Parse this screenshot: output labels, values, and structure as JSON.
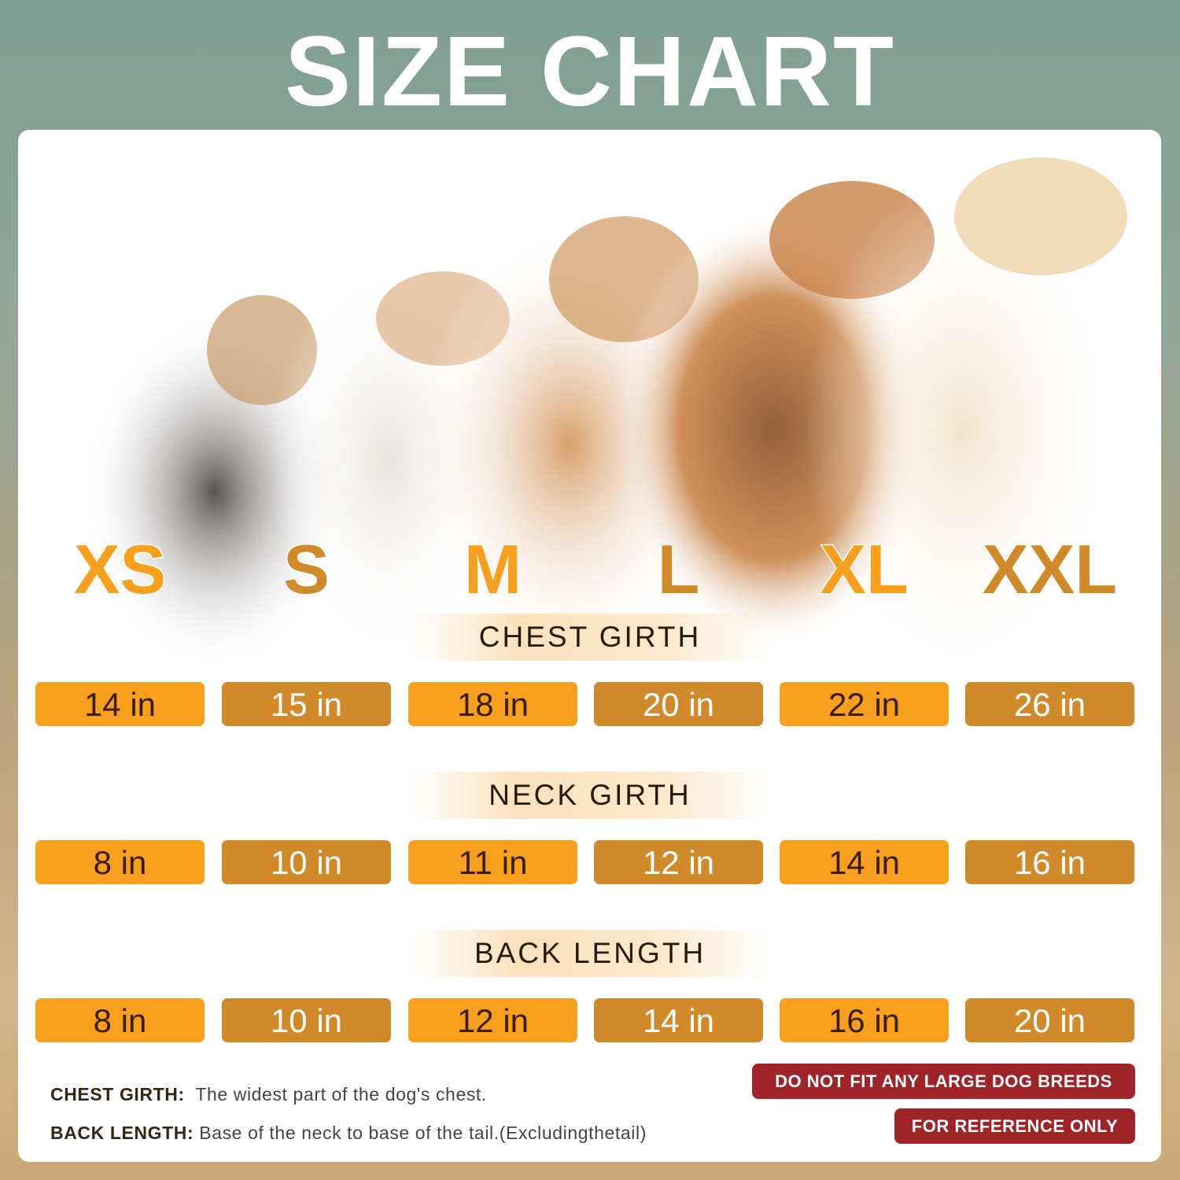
{
  "title": "SIZE CHART",
  "sizes": [
    "XS",
    "S",
    "M",
    "L",
    "XL",
    "XXL"
  ],
  "sections": [
    {
      "label": "CHEST GIRTH",
      "values": [
        "14 in",
        "15 in",
        "18 in",
        "20 in",
        "22 in",
        "26 in"
      ]
    },
    {
      "label": "NECK GIRTH",
      "values": [
        "8 in",
        "10 in",
        "11 in",
        "12 in",
        "14 in",
        "16 in"
      ]
    },
    {
      "label": "BACK LENGTH",
      "values": [
        "8 in",
        "10 in",
        "12 in",
        "14 in",
        "16 in",
        "20 in"
      ]
    }
  ],
  "notes": [
    {
      "term": "CHEST GIRTH:",
      "text": "The widest part of the dog's chest."
    },
    {
      "term": "BACK LENGTH:",
      "text": "Base of the neck to base of the tail.(Excludingthetail)"
    }
  ],
  "warnings": [
    "DO NOT FIT ANY LARGE DOG BREEDS",
    "FOR REFERENCE ONLY"
  ],
  "colors": {
    "orange": "#F99F1E",
    "dark_orange": "#D18A2A",
    "warning_red": "#9E2428"
  }
}
